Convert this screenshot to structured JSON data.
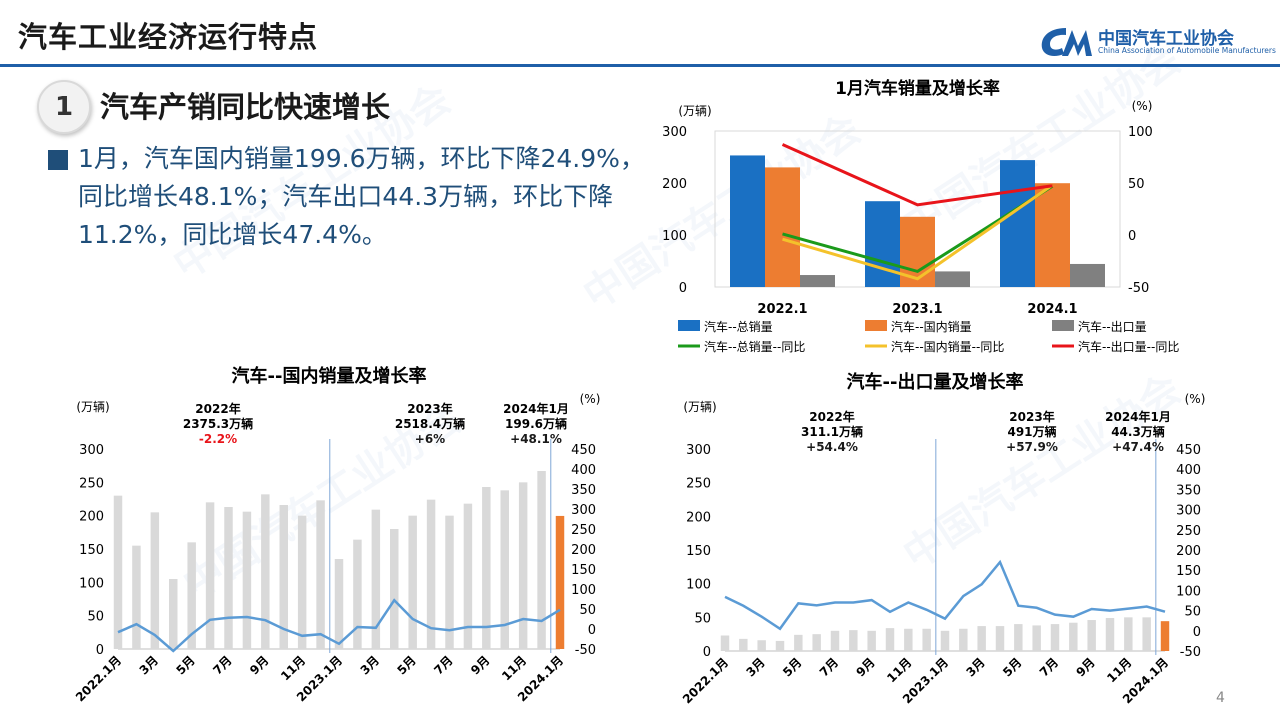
{
  "header": {
    "title": "汽车工业经济运行特点"
  },
  "logo": {
    "cn": "中国汽车工业协会",
    "en": "China Association of Automobile Manufacturers"
  },
  "section": {
    "number": "1",
    "title": "汽车产销同比快速增长"
  },
  "bullet": {
    "text": "1月，汽车国内销量199.6万辆，环比下降24.9%，同比增长48.1%；汽车出口44.3万辆，环比下降11.2%，同比增长47.4%。"
  },
  "page_number": "4",
  "colors": {
    "blue": "#1a70c3",
    "orange": "#ed7d31",
    "gray": "#808080",
    "green": "#1b9a1b",
    "yellow": "#f4c22b",
    "red": "#e8141a",
    "line_blue": "#5b9bd5",
    "bar_light": "#d9d9d9"
  },
  "chart_data": [
    {
      "type": "bar",
      "title": "1月汽车销量及增长率",
      "ylabel": "(万辆)",
      "y2label": "(%)",
      "ylim": [
        0,
        300
      ],
      "y2lim": [
        -50,
        100
      ],
      "yticks": [
        "0",
        "100",
        "200",
        "300"
      ],
      "y2ticks": [
        "-50",
        "0",
        "50",
        "100"
      ],
      "categories": [
        "2022.1",
        "2023.1",
        "2024.1"
      ],
      "series": [
        {
          "name": "汽车--总销量",
          "kind": "bar",
          "axis": "left",
          "values": [
            253,
            165,
            244
          ]
        },
        {
          "name": "汽车--国内销量",
          "kind": "bar",
          "axis": "left",
          "values": [
            230,
            135,
            199.6
          ]
        },
        {
          "name": "汽车--出口量",
          "kind": "bar",
          "axis": "left",
          "values": [
            23,
            30,
            44.3
          ]
        },
        {
          "name": "汽车--总销量--同比",
          "kind": "line",
          "axis": "right",
          "values": [
            1,
            -35,
            47
          ]
        },
        {
          "name": "汽车--国内销量--同比",
          "kind": "line",
          "axis": "right",
          "values": [
            -4,
            -42,
            48.1
          ]
        },
        {
          "name": "汽车--出口量--同比",
          "kind": "line",
          "axis": "right",
          "values": [
            87,
            29,
            47.4
          ]
        }
      ],
      "legend_position": "bottom"
    },
    {
      "type": "bar",
      "title": "汽车--国内销量及增长率",
      "ylabel": "(万辆)",
      "y2label": "(%)",
      "ylim": [
        0,
        300
      ],
      "y2lim": [
        -50,
        450
      ],
      "yticks": [
        "0",
        "50",
        "100",
        "150",
        "200",
        "250",
        "300"
      ],
      "y2ticks": [
        "-50",
        "0",
        "50",
        "100",
        "150",
        "200",
        "250",
        "300",
        "350",
        "400",
        "450"
      ],
      "xticks": [
        "2022.1月",
        "3月",
        "5月",
        "7月",
        "9月",
        "11月",
        "2023.1月",
        "3月",
        "5月",
        "7月",
        "9月",
        "11月",
        "2024.1月"
      ],
      "bars": [
        230,
        155,
        205,
        105,
        160,
        220,
        213,
        206,
        232,
        216,
        200,
        223,
        135,
        164,
        209,
        180,
        200,
        224,
        200,
        218,
        243,
        238,
        250,
        267,
        199.6
      ],
      "growth": [
        -8,
        12,
        -15,
        -55,
        -13,
        23,
        28,
        30,
        22,
        0,
        -17,
        -13,
        -37,
        5,
        3,
        72,
        25,
        2,
        -3,
        5,
        5,
        10,
        25,
        20,
        48.1
      ],
      "annotations": [
        {
          "lines": [
            "2022年",
            "2375.3万辆"
          ],
          "highlight": "-2.2%",
          "highlight_color": "#e8141a"
        },
        {
          "lines": [
            "2023年",
            "2518.4万辆"
          ],
          "highlight": "+6%",
          "highlight_color": "#1a1a1a"
        },
        {
          "lines": [
            "2024年1月",
            "199.6万辆"
          ],
          "highlight": "+48.1%",
          "highlight_color": "#1a1a1a"
        }
      ]
    },
    {
      "type": "bar",
      "title": "汽车--出口量及增长率",
      "ylabel": "(万辆)",
      "y2label": "(%)",
      "ylim": [
        0,
        300
      ],
      "y2lim": [
        -50,
        450
      ],
      "yticks": [
        "0",
        "50",
        "100",
        "150",
        "200",
        "250",
        "300"
      ],
      "y2ticks": [
        "-50",
        "0",
        "50",
        "100",
        "150",
        "200",
        "250",
        "300",
        "350",
        "400",
        "450"
      ],
      "xticks": [
        "2022.1月",
        "3月",
        "5月",
        "7月",
        "9月",
        "11月",
        "2023.1月",
        "3月",
        "5月",
        "7月",
        "9月",
        "11月",
        "2024.1月"
      ],
      "bars": [
        23,
        18,
        16,
        15,
        24,
        25,
        30,
        31,
        30,
        34,
        33,
        33,
        30,
        33,
        37,
        37,
        40,
        38,
        40,
        42,
        46,
        49,
        50,
        50,
        44.3
      ],
      "growth": [
        84,
        62,
        35,
        5,
        68,
        63,
        70,
        70,
        76,
        47,
        70,
        52,
        30,
        86,
        115,
        170,
        62,
        57,
        40,
        35,
        54,
        50,
        55,
        60,
        47.4
      ],
      "annotations": [
        {
          "lines": [
            "2022年",
            "311.1万辆"
          ],
          "highlight": "+54.4%",
          "highlight_color": "#1a1a1a"
        },
        {
          "lines": [
            "2023年",
            "491万辆"
          ],
          "highlight": "+57.9%",
          "highlight_color": "#1a1a1a"
        },
        {
          "lines": [
            "2024年1月",
            "44.3万辆"
          ],
          "highlight": "+47.4%",
          "highlight_color": "#1a1a1a"
        }
      ]
    }
  ]
}
